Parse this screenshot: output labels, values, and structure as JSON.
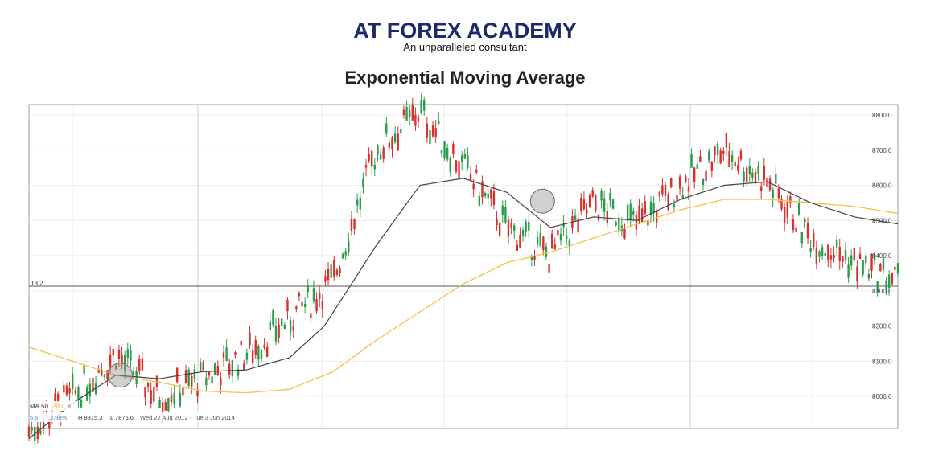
{
  "header": {
    "brand": "AT FOREX ACADEMY",
    "tagline": "An unparalleled consultant"
  },
  "chart_data": {
    "type": "line",
    "title": "Exponential Moving Average",
    "ylim": [
      7920,
      8830
    ],
    "y_ticks": [
      8000,
      8100,
      8200,
      8300,
      8400,
      8500,
      8600,
      8700,
      8800
    ],
    "y_tick_labels": [
      "8000.0",
      "8100.0",
      "8200.0",
      "8300.0",
      "8400.0",
      "8500.0",
      "8600.0",
      "8700.0",
      "8800.0"
    ],
    "price_level": 8313.2,
    "price_level_label": "13.2",
    "grid": true,
    "legend": {
      "indicator_label": "MA",
      "periods": [
        "50",
        "200"
      ],
      "period_colors": [
        "#222222",
        "#f5a623"
      ],
      "close_icon": "x-icon"
    },
    "info_bar": {
      "change_value": "5.6",
      "change_pct": "2.98%",
      "high": "H 8815.3",
      "low": "L 7876.6",
      "range": "Wed 22 Aug 2012 - Tue 3 Jun 2014"
    },
    "series": [
      {
        "name": "50",
        "color": "#444444",
        "x": [
          0,
          5,
          10,
          15,
          20,
          25,
          30,
          34,
          40,
          45,
          50,
          55,
          60,
          65,
          70,
          75,
          80,
          85,
          90,
          95,
          100
        ],
        "values": [
          7880,
          7980,
          8060,
          8050,
          8070,
          8075,
          8110,
          8200,
          8430,
          8600,
          8620,
          8580,
          8480,
          8510,
          8500,
          8560,
          8600,
          8610,
          8550,
          8510,
          8490
        ]
      },
      {
        "name": "200",
        "color": "#f5c242",
        "x": [
          0,
          5,
          10,
          15,
          20,
          25,
          30,
          35,
          40,
          45,
          50,
          55,
          60,
          65,
          70,
          75,
          80,
          85,
          90,
          95,
          100
        ],
        "values": [
          8140,
          8100,
          8060,
          8040,
          8015,
          8010,
          8020,
          8070,
          8160,
          8240,
          8320,
          8380,
          8410,
          8450,
          8490,
          8530,
          8560,
          8560,
          8550,
          8540,
          8520
        ]
      },
      {
        "name": "",
        "color": "#2a9d4a",
        "x": [
          0,
          5,
          10,
          15,
          20,
          25,
          30,
          35,
          40,
          45,
          50,
          55,
          60,
          65,
          70,
          75,
          80,
          85,
          90,
          95,
          100
        ],
        "values": [
          7900,
          8000,
          8120,
          8000,
          8050,
          8120,
          8220,
          8330,
          8700,
          8810,
          8650,
          8480,
          8400,
          8550,
          8490,
          8600,
          8700,
          8610,
          8450,
          8380,
          8330
        ]
      }
    ],
    "annotations": [
      "circle-marker",
      "circle-marker"
    ]
  }
}
